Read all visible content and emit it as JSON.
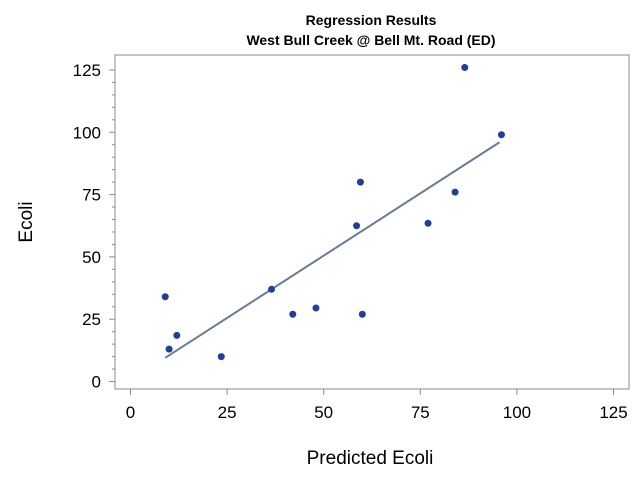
{
  "chart_data": {
    "type": "scatter",
    "title": "Regression Results",
    "subtitle": "West Bull Creek @ Bell Mt. Road (ED)",
    "xlabel": "Predicted Ecoli",
    "ylabel": "Ecoli",
    "xlim": [
      -4,
      129
    ],
    "ylim": [
      -3,
      131
    ],
    "xticks": [
      0,
      25,
      50,
      75,
      100,
      125
    ],
    "yticks": [
      0,
      25,
      50,
      75,
      100,
      125
    ],
    "yminor_step": 5,
    "grid": false,
    "legend": "none",
    "points": [
      {
        "x": 9.0,
        "y": 34
      },
      {
        "x": 10.0,
        "y": 13
      },
      {
        "x": 12.0,
        "y": 18.5
      },
      {
        "x": 23.5,
        "y": 10
      },
      {
        "x": 36.5,
        "y": 37
      },
      {
        "x": 42.0,
        "y": 27
      },
      {
        "x": 48.0,
        "y": 29.5
      },
      {
        "x": 58.5,
        "y": 62.5
      },
      {
        "x": 59.5,
        "y": 80
      },
      {
        "x": 60.0,
        "y": 27
      },
      {
        "x": 77.0,
        "y": 63.5
      },
      {
        "x": 84.0,
        "y": 76
      },
      {
        "x": 86.5,
        "y": 126
      },
      {
        "x": 96.0,
        "y": 99
      }
    ],
    "fit_line": {
      "x": [
        9,
        95.5
      ],
      "y": [
        9.5,
        96
      ]
    },
    "colors": {
      "points": "#1f3f99",
      "fit_line": "#667b99",
      "frame": "#8c8c8c"
    }
  }
}
